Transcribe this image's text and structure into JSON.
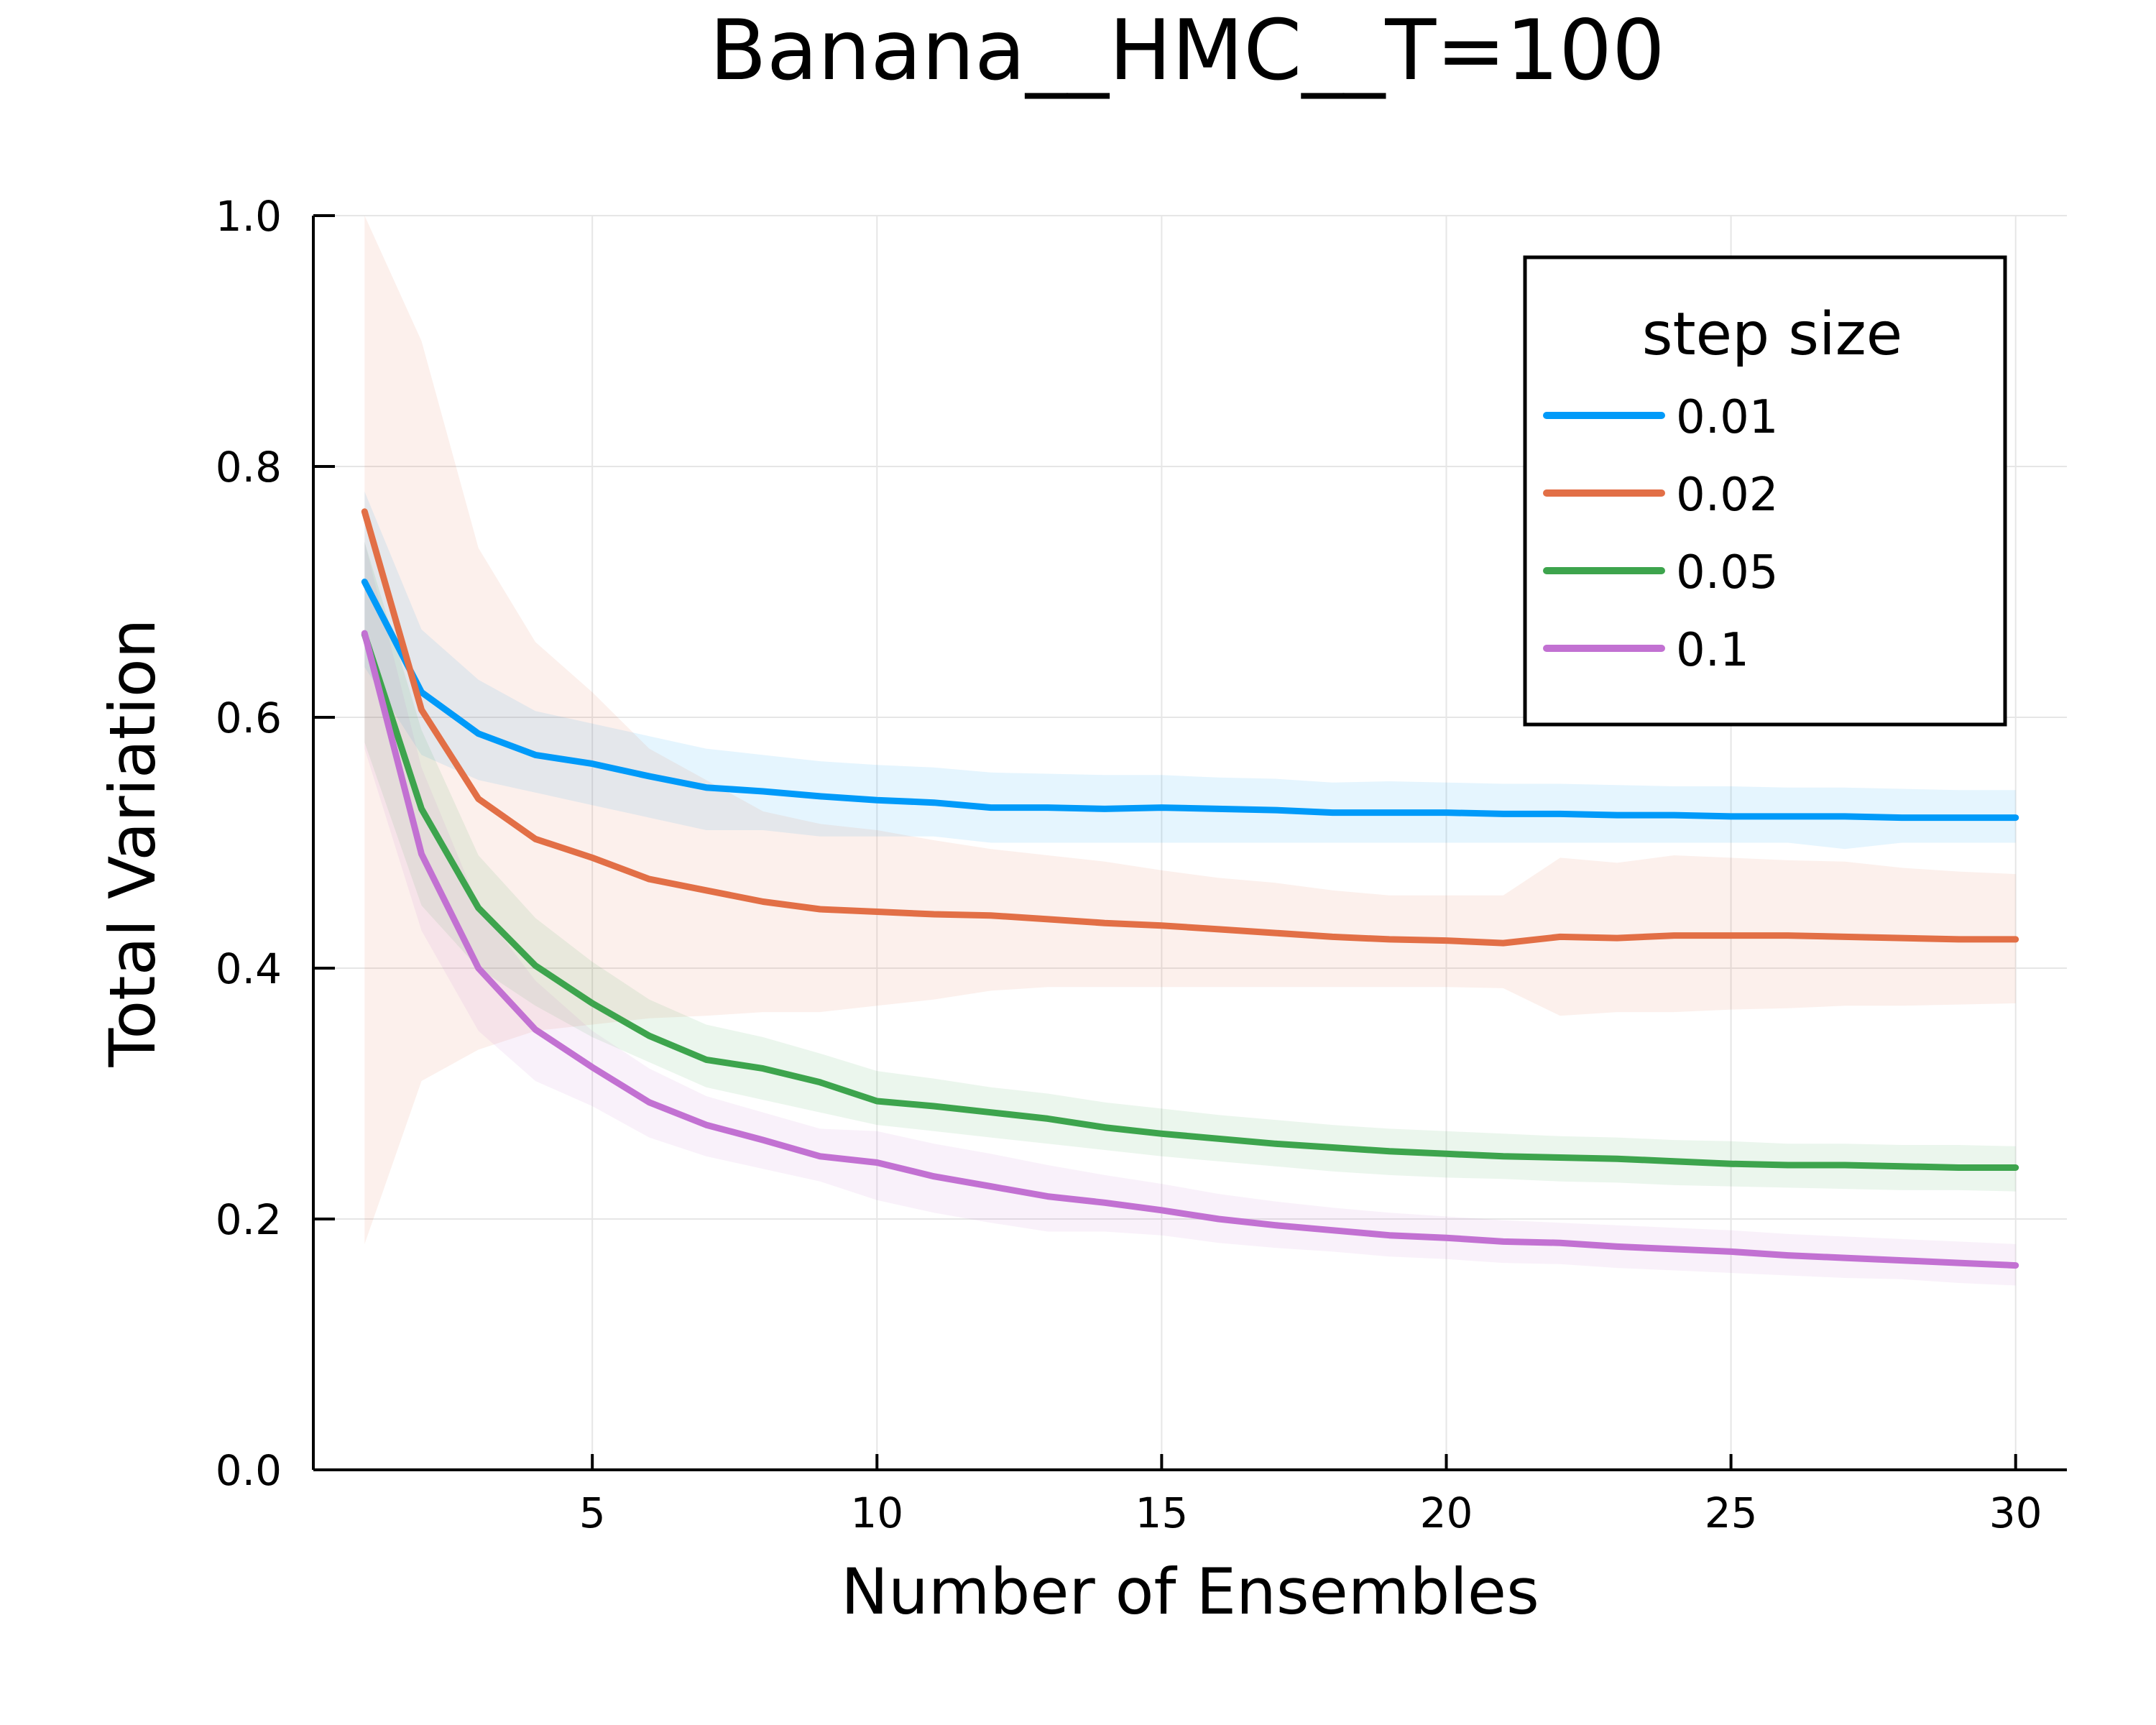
{
  "chart_data": {
    "type": "line",
    "title": "Banana__HMC__T=100",
    "xlabel": "Number of Ensembles",
    "ylabel": "Total Variation",
    "xlim": [
      0.1,
      30.9
    ],
    "ylim": [
      0,
      1
    ],
    "xticks": [
      5,
      10,
      15,
      20,
      25,
      30
    ],
    "xtick_labels": [
      "5",
      "10",
      "15",
      "20",
      "25",
      "30"
    ],
    "yticks": [
      0,
      0.2,
      0.4,
      0.6,
      0.8,
      1.0
    ],
    "ytick_labels": [
      "0.0",
      "0.2",
      "0.4",
      "0.6",
      "0.8",
      "1.0"
    ],
    "grid": true,
    "legend": {
      "title": "step size",
      "position": "top-right"
    },
    "x": [
      1,
      2,
      3,
      4,
      5,
      6,
      7,
      8,
      9,
      10,
      11,
      12,
      13,
      14,
      15,
      16,
      17,
      18,
      19,
      20,
      21,
      22,
      23,
      24,
      25,
      26,
      27,
      28,
      29,
      30
    ],
    "series": [
      {
        "name": "0.01",
        "color": "#009af9",
        "values": [
          0.708,
          0.62,
          0.587,
          0.57,
          0.563,
          0.553,
          0.544,
          0.541,
          0.537,
          0.534,
          0.532,
          0.528,
          0.528,
          0.527,
          0.528,
          0.527,
          0.526,
          0.524,
          0.524,
          0.524,
          0.523,
          0.523,
          0.522,
          0.522,
          0.521,
          0.521,
          0.521,
          0.52,
          0.52,
          0.52
        ],
        "lower": [
          0.64,
          0.57,
          0.55,
          0.54,
          0.53,
          0.52,
          0.51,
          0.51,
          0.505,
          0.505,
          0.505,
          0.5,
          0.5,
          0.5,
          0.5,
          0.5,
          0.5,
          0.5,
          0.5,
          0.5,
          0.5,
          0.5,
          0.5,
          0.5,
          0.5,
          0.5,
          0.495,
          0.5,
          0.5,
          0.5
        ],
        "upper": [
          0.78,
          0.67,
          0.63,
          0.605,
          0.595,
          0.585,
          0.575,
          0.57,
          0.565,
          0.562,
          0.56,
          0.556,
          0.555,
          0.554,
          0.554,
          0.552,
          0.551,
          0.548,
          0.549,
          0.548,
          0.547,
          0.547,
          0.546,
          0.545,
          0.545,
          0.544,
          0.544,
          0.543,
          0.542,
          0.542
        ]
      },
      {
        "name": "0.02",
        "color": "#e26f46",
        "values": [
          0.764,
          0.606,
          0.535,
          0.503,
          0.488,
          0.471,
          0.462,
          0.453,
          0.447,
          0.445,
          0.443,
          0.442,
          0.439,
          0.436,
          0.434,
          0.431,
          0.428,
          0.425,
          0.423,
          0.422,
          0.42,
          0.425,
          0.424,
          0.426,
          0.426,
          0.426,
          0.425,
          0.424,
          0.423,
          0.423
        ],
        "lower": [
          0.18,
          0.31,
          0.335,
          0.35,
          0.355,
          0.36,
          0.362,
          0.365,
          0.365,
          0.37,
          0.375,
          0.382,
          0.385,
          0.385,
          0.385,
          0.385,
          0.385,
          0.385,
          0.385,
          0.385,
          0.384,
          0.362,
          0.365,
          0.365,
          0.367,
          0.368,
          0.37,
          0.37,
          0.371,
          0.372
        ],
        "upper": [
          1.0,
          0.9,
          0.735,
          0.66,
          0.62,
          0.575,
          0.55,
          0.525,
          0.515,
          0.51,
          0.502,
          0.495,
          0.49,
          0.485,
          0.478,
          0.472,
          0.468,
          0.462,
          0.458,
          0.458,
          0.458,
          0.488,
          0.484,
          0.49,
          0.488,
          0.486,
          0.485,
          0.48,
          0.477,
          0.475
        ]
      },
      {
        "name": "0.05",
        "color": "#3da44d",
        "values": [
          0.666,
          0.527,
          0.448,
          0.402,
          0.372,
          0.346,
          0.327,
          0.32,
          0.309,
          0.294,
          0.29,
          0.285,
          0.28,
          0.273,
          0.268,
          0.264,
          0.26,
          0.257,
          0.254,
          0.252,
          0.25,
          0.249,
          0.248,
          0.246,
          0.244,
          0.243,
          0.243,
          0.242,
          0.241,
          0.241
        ],
        "lower": [
          0.58,
          0.45,
          0.4,
          0.37,
          0.345,
          0.325,
          0.305,
          0.295,
          0.285,
          0.275,
          0.27,
          0.265,
          0.26,
          0.255,
          0.25,
          0.246,
          0.242,
          0.238,
          0.235,
          0.233,
          0.232,
          0.23,
          0.229,
          0.227,
          0.226,
          0.225,
          0.224,
          0.223,
          0.223,
          0.222
        ],
        "upper": [
          0.74,
          0.59,
          0.49,
          0.44,
          0.405,
          0.375,
          0.355,
          0.345,
          0.332,
          0.318,
          0.312,
          0.305,
          0.3,
          0.293,
          0.288,
          0.283,
          0.279,
          0.275,
          0.272,
          0.27,
          0.268,
          0.266,
          0.265,
          0.263,
          0.262,
          0.26,
          0.26,
          0.259,
          0.259,
          0.258
        ]
      },
      {
        "name": "0.1",
        "color": "#c271d2",
        "values": [
          0.667,
          0.491,
          0.4,
          0.351,
          0.321,
          0.293,
          0.275,
          0.263,
          0.25,
          0.245,
          0.234,
          0.226,
          0.218,
          0.213,
          0.207,
          0.2,
          0.195,
          0.191,
          0.187,
          0.185,
          0.182,
          0.181,
          0.178,
          0.176,
          0.174,
          0.171,
          0.169,
          0.167,
          0.165,
          0.163
        ],
        "lower": [
          0.575,
          0.43,
          0.35,
          0.31,
          0.29,
          0.265,
          0.25,
          0.24,
          0.23,
          0.215,
          0.205,
          0.197,
          0.19,
          0.19,
          0.187,
          0.181,
          0.177,
          0.174,
          0.17,
          0.168,
          0.165,
          0.164,
          0.161,
          0.159,
          0.157,
          0.155,
          0.153,
          0.152,
          0.149,
          0.147
        ],
        "upper": [
          0.74,
          0.56,
          0.45,
          0.39,
          0.35,
          0.32,
          0.298,
          0.285,
          0.272,
          0.27,
          0.26,
          0.252,
          0.243,
          0.235,
          0.228,
          0.22,
          0.214,
          0.209,
          0.205,
          0.202,
          0.199,
          0.197,
          0.195,
          0.193,
          0.191,
          0.188,
          0.186,
          0.184,
          0.182,
          0.18
        ]
      }
    ]
  }
}
